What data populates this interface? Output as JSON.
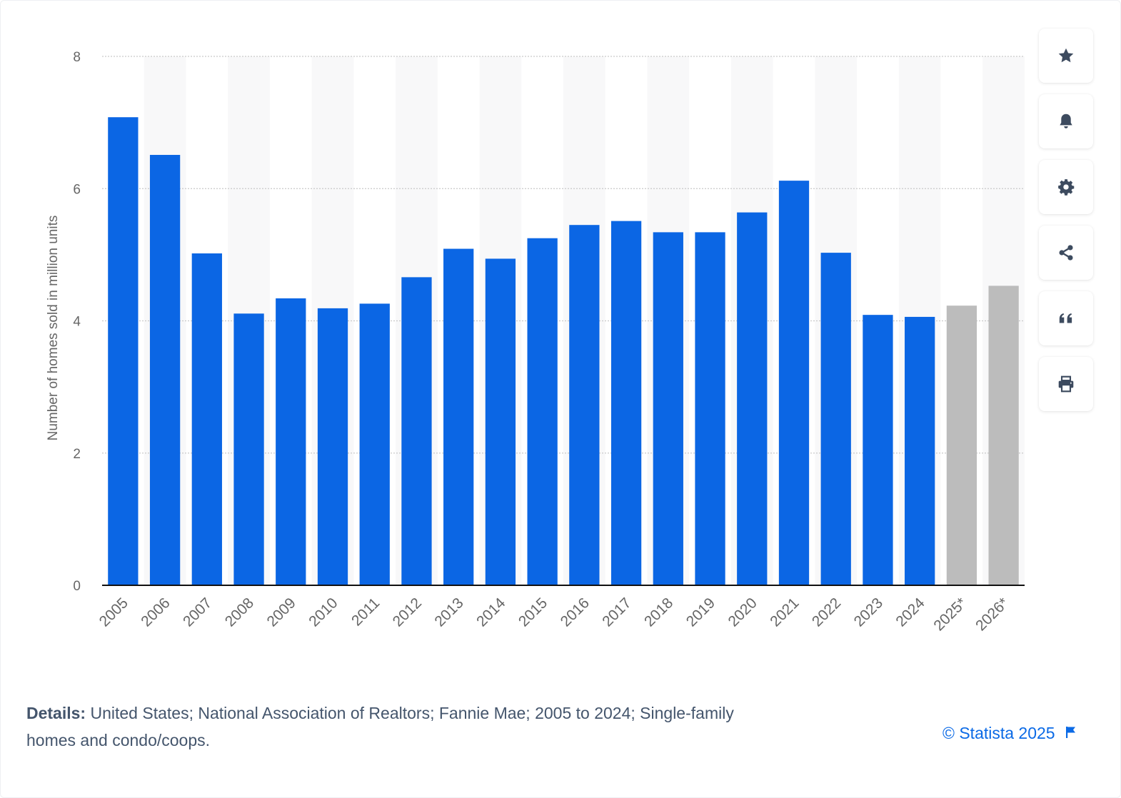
{
  "chart_data": {
    "type": "bar",
    "title": "",
    "xlabel": "",
    "ylabel": "Number of homes sold in million units",
    "ylim": [
      0,
      8
    ],
    "yticks": [
      0,
      2,
      4,
      6,
      8
    ],
    "grid": true,
    "categories": [
      "2005",
      "2006",
      "2007",
      "2008",
      "2009",
      "2010",
      "2011",
      "2012",
      "2013",
      "2014",
      "2015",
      "2016",
      "2017",
      "2018",
      "2019",
      "2020",
      "2021",
      "2022",
      "2023",
      "2024",
      "2025*",
      "2026*"
    ],
    "values": [
      7.08,
      6.51,
      5.02,
      4.11,
      4.34,
      4.19,
      4.26,
      4.66,
      5.09,
      4.94,
      5.25,
      5.45,
      5.51,
      5.34,
      5.34,
      5.64,
      6.12,
      5.03,
      4.09,
      4.06,
      4.23,
      4.53
    ],
    "forecast": [
      false,
      false,
      false,
      false,
      false,
      false,
      false,
      false,
      false,
      false,
      false,
      false,
      false,
      false,
      false,
      false,
      false,
      false,
      false,
      false,
      true,
      true
    ],
    "colors": {
      "bar": "#0b66e4",
      "forecast_bar": "#bcbcbc",
      "band": "#f8f8f9",
      "grid": "#c9c9c9",
      "axis": "#111111",
      "tick_text": "#666666"
    }
  },
  "toolbar": {
    "buttons": [
      {
        "icon": "star-icon",
        "name": "favorite-button"
      },
      {
        "icon": "bell-icon",
        "name": "notification-button"
      },
      {
        "icon": "gear-icon",
        "name": "settings-button"
      },
      {
        "icon": "share-icon",
        "name": "share-button"
      },
      {
        "icon": "quote-icon",
        "name": "cite-button"
      },
      {
        "icon": "print-icon",
        "name": "print-button"
      }
    ],
    "icon_color": "#3d4b5f"
  },
  "footer": {
    "details_label": "Details:",
    "details_text": "United States; National Association of Realtors; Fannie Mae; 2005 to 2024; Single-family homes and condo/coops.",
    "copyright": "© Statista 2025",
    "flag_icon": "flag-icon"
  }
}
